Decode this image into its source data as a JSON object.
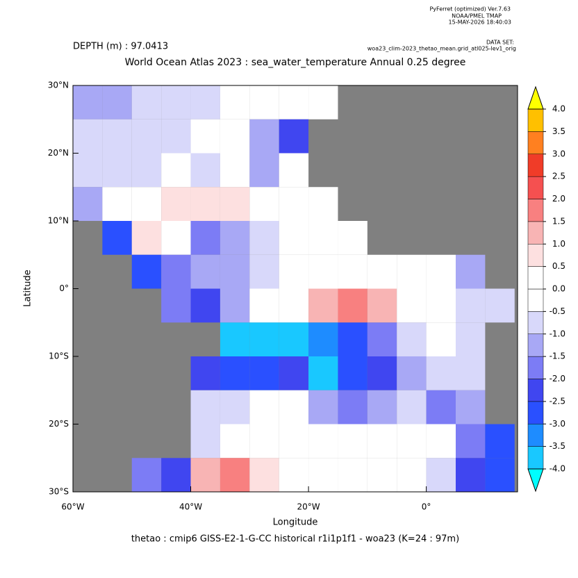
{
  "header": {
    "software": "PyFerret (optimized) Ver.7.63",
    "lab": "NOAA/PMEL TMAP",
    "date": "15-MAY-2026 18:40:03"
  },
  "chart_data": {
    "type": "heatmap",
    "depth_label": "DEPTH (m) : 97.0413",
    "dataset_label": "DATA SET:",
    "dataset": "woa23_clim-2023_thetao_mean.grid_atl025-lev1_orig",
    "title": "World Ocean Atlas 2023 : sea_water_temperature Annual  0.25 degree",
    "x_label": "Longitude",
    "y_label": "Latitude",
    "footer": "thetao : cmip6 GISS-E2-1-G-CC historical r1i1p1f1 - woa23  (K=24 : 97m)",
    "xlim": [
      -60,
      15.5
    ],
    "ylim": [
      -30,
      30
    ],
    "xticks": [
      {
        "value": -60,
        "label": "60°W"
      },
      {
        "value": -40,
        "label": "40°W"
      },
      {
        "value": -20,
        "label": "20°W"
      },
      {
        "value": 0,
        "label": "0°"
      }
    ],
    "yticks": [
      {
        "value": 30,
        "label": "30°N"
      },
      {
        "value": 20,
        "label": "20°N"
      },
      {
        "value": 10,
        "label": "10°N"
      },
      {
        "value": 0,
        "label": "0°"
      },
      {
        "value": -10,
        "label": "10°S"
      },
      {
        "value": -20,
        "label": "20°S"
      },
      {
        "value": -30,
        "label": "30°S"
      }
    ],
    "land_color": "#808080",
    "lon": [
      -57.5,
      -52.5,
      -47.5,
      -42.5,
      -37.5,
      -32.5,
      -27.5,
      -22.5,
      -17.5,
      -12.5,
      -7.5,
      -2.5,
      2.5,
      7.5,
      12.5
    ],
    "lat": [
      27.5,
      22.5,
      17.5,
      12.5,
      7.5,
      2.5,
      -2.5,
      -7.5,
      -12.5,
      -17.5,
      -22.5,
      -27.5
    ],
    "values": [
      [
        -1.5,
        -1.2,
        -1,
        -0.8,
        -0.6,
        -0.4,
        -0.3,
        0.3,
        0.2,
        null,
        null,
        null,
        null,
        null,
        null
      ],
      [
        -1,
        -0.8,
        -0.7,
        -0.6,
        -0.5,
        -0.4,
        -1.2,
        -2.2,
        null,
        null,
        null,
        null,
        null,
        null,
        null
      ],
      [
        -0.8,
        -0.7,
        -0.6,
        -0.5,
        -0.6,
        -0.5,
        -1.5,
        -0.5,
        null,
        null,
        null,
        null,
        null,
        null,
        null
      ],
      [
        -1.5,
        -0.5,
        0.3,
        0.5,
        0.5,
        0.5,
        0.3,
        0,
        -0.3,
        null,
        null,
        null,
        null,
        null,
        null
      ],
      [
        null,
        -3,
        0.8,
        -0.5,
        -2,
        -1.5,
        -0.7,
        -0.5,
        -0.5,
        -0.5,
        null,
        null,
        null,
        null,
        null
      ],
      [
        null,
        null,
        -3,
        -2,
        -1.5,
        -1.5,
        -0.8,
        -0.3,
        0.3,
        0.3,
        0,
        -0.3,
        -0.5,
        -1.5,
        null
      ],
      [
        null,
        null,
        null,
        -2,
        -2.5,
        -1.5,
        -0.5,
        -0.3,
        1,
        1.5,
        1,
        0.3,
        -0.3,
        -0.8,
        -1
      ],
      [
        null,
        null,
        null,
        null,
        null,
        -4,
        -4,
        -4,
        -3.5,
        -3,
        -2,
        -1,
        -0.5,
        -1,
        null
      ],
      [
        null,
        null,
        null,
        null,
        -2.5,
        -3,
        -3,
        -2.5,
        -4,
        -3,
        -2.5,
        -1.5,
        -1,
        -1,
        null
      ],
      [
        null,
        null,
        null,
        null,
        -1,
        -0.8,
        -0.5,
        -0.5,
        -1.5,
        -2,
        -1.5,
        -1,
        -2,
        -1.5,
        null
      ],
      [
        null,
        null,
        null,
        null,
        -0.6,
        -0.5,
        -0.3,
        -0.3,
        0.3,
        0.3,
        0.3,
        0.2,
        -0.5,
        -2,
        -3
      ],
      [
        null,
        null,
        -2,
        -2.5,
        1,
        1.5,
        0.5,
        -0.3,
        -0.3,
        -0.2,
        -0.3,
        -0.5,
        -1,
        -2.5,
        -3
      ]
    ],
    "levels": [
      {
        "value": -4,
        "label": "-4.0"
      },
      {
        "value": -3.5,
        "label": "-3.5"
      },
      {
        "value": -3,
        "label": "-3.0"
      },
      {
        "value": -2.5,
        "label": "-2.5"
      },
      {
        "value": -2,
        "label": "-2.0"
      },
      {
        "value": -1.5,
        "label": "-1.5"
      },
      {
        "value": -1,
        "label": "-1.0"
      },
      {
        "value": -0.5,
        "label": "-0.5"
      },
      {
        "value": 0,
        "label": "0.0"
      },
      {
        "value": 0.5,
        "label": "0.5"
      },
      {
        "value": 1,
        "label": "1.0"
      },
      {
        "value": 1.5,
        "label": "1.5"
      },
      {
        "value": 2,
        "label": "2.0"
      },
      {
        "value": 2.5,
        "label": "2.5"
      },
      {
        "value": 3,
        "label": "3.0"
      },
      {
        "value": 3.5,
        "label": "3.5"
      },
      {
        "value": 4,
        "label": "4.0"
      }
    ],
    "colors": [
      "#19c8ff",
      "#1e8cff",
      "#2a50ff",
      "#4046f0",
      "#7c7cf5",
      "#a8a8f5",
      "#d8d8fa",
      "#ffffff",
      "#ffffff",
      "#fde0e0",
      "#f8b4b4",
      "#f88080",
      "#f55050",
      "#f03c28",
      "#ff8020",
      "#ffc000"
    ],
    "under_color": "#00ffff",
    "over_color": "#ffff00"
  }
}
